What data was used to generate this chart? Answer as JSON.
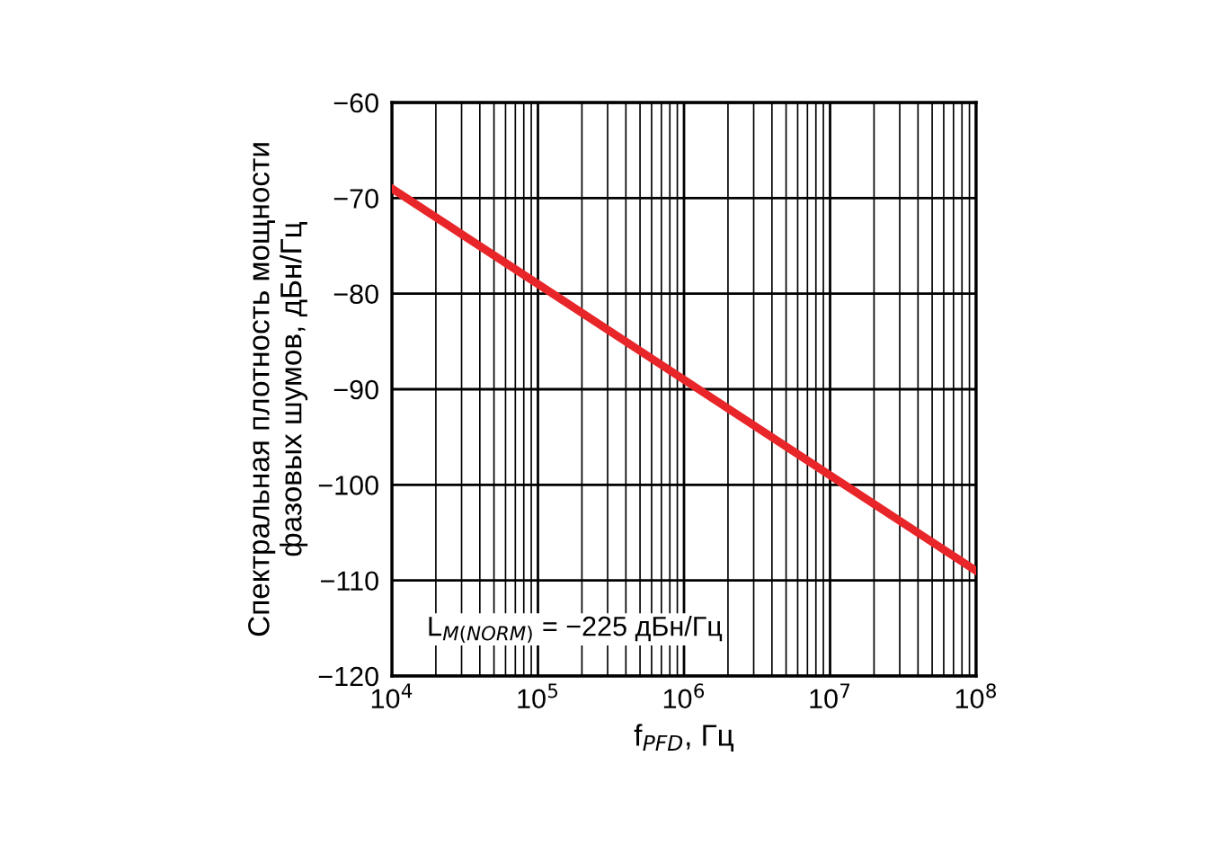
{
  "chart_data": {
    "type": "line",
    "xlabel": "f$_{PFD}$, Гц",
    "ylabel": "Спектральная плотность мощности\nфазовых шумов, дБн/Гц",
    "x": [
      10000,
      100000,
      1000000,
      10000000,
      100000000
    ],
    "series": [
      {
        "color": "#e8262a",
        "values": [
          -69,
          -79,
          -89,
          -99,
          -109
        ]
      }
    ],
    "log": "x",
    "grid": true,
    "marker": "none",
    "line_style": "solid",
    "xlim": [
      10000,
      100000000
    ],
    "xticks": [
      {
        "value": 10000,
        "label": "10$^{4}$"
      },
      {
        "value": 100000,
        "label": "10$^{5}$"
      },
      {
        "value": 1000000,
        "label": "10$^{6}$"
      },
      {
        "value": 10000000,
        "label": "10$^{7}$"
      },
      {
        "value": 100000000,
        "label": "10$^{8}$"
      }
    ],
    "ylim": [
      -120,
      -60
    ],
    "yticks": [
      {
        "value": -120,
        "label": "−120"
      },
      {
        "value": -110,
        "label": "−110"
      },
      {
        "value": -100,
        "label": "−100"
      },
      {
        "value": -90,
        "label": "−90"
      },
      {
        "value": -80,
        "label": "−80"
      },
      {
        "value": -70,
        "label": "−70"
      },
      {
        "value": -60,
        "label": "−60"
      }
    ],
    "annotations": [
      "L$_{M(NORM)}$ = −225 дБн/Гц"
    ]
  }
}
